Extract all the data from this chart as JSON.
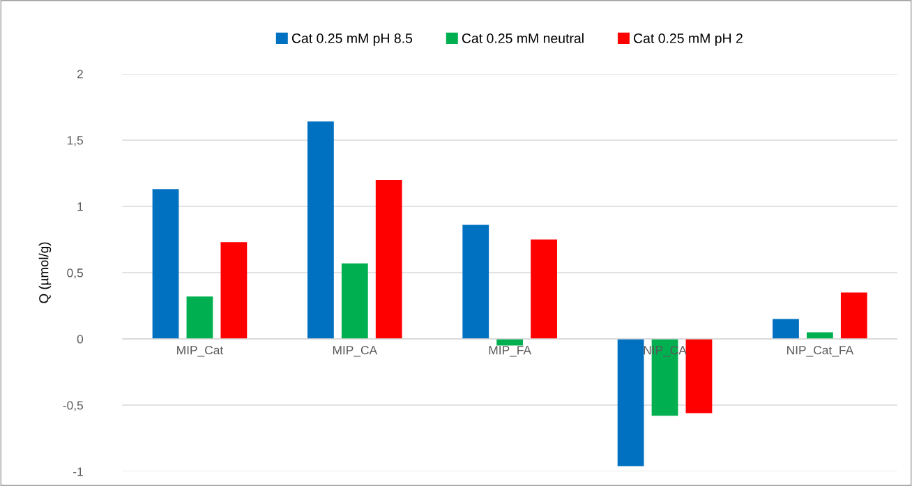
{
  "chart_data": {
    "type": "bar",
    "ylabel": "Q (µmol/g)",
    "categories": [
      "MIP_Cat",
      "MIP_CA",
      "MIP_FA",
      "NIP_CA",
      "NIP_Cat_FA"
    ],
    "series": [
      {
        "name": "Cat 0.25 mM pH 8.5",
        "color": "#0070c0",
        "values": [
          1.13,
          1.64,
          0.86,
          -0.96,
          0.15
        ]
      },
      {
        "name": "Cat 0.25 mM neutral",
        "color": "#00b050",
        "values": [
          0.32,
          0.57,
          -0.05,
          -0.58,
          0.05
        ]
      },
      {
        "name": "Cat 0.25 mM pH 2",
        "color": "#ff0000",
        "values": [
          0.73,
          1.2,
          0.75,
          -0.56,
          0.35
        ]
      }
    ],
    "ylim": [
      -1,
      2
    ],
    "yticks": [
      {
        "value": -1,
        "label": "-1"
      },
      {
        "value": -0.5,
        "label": "-0,5"
      },
      0,
      {
        "value": 0.5,
        "label": "0,5"
      },
      1,
      {
        "value": 1.5,
        "label": "1,5"
      },
      2
    ],
    "grid": "y",
    "legend": "top"
  }
}
